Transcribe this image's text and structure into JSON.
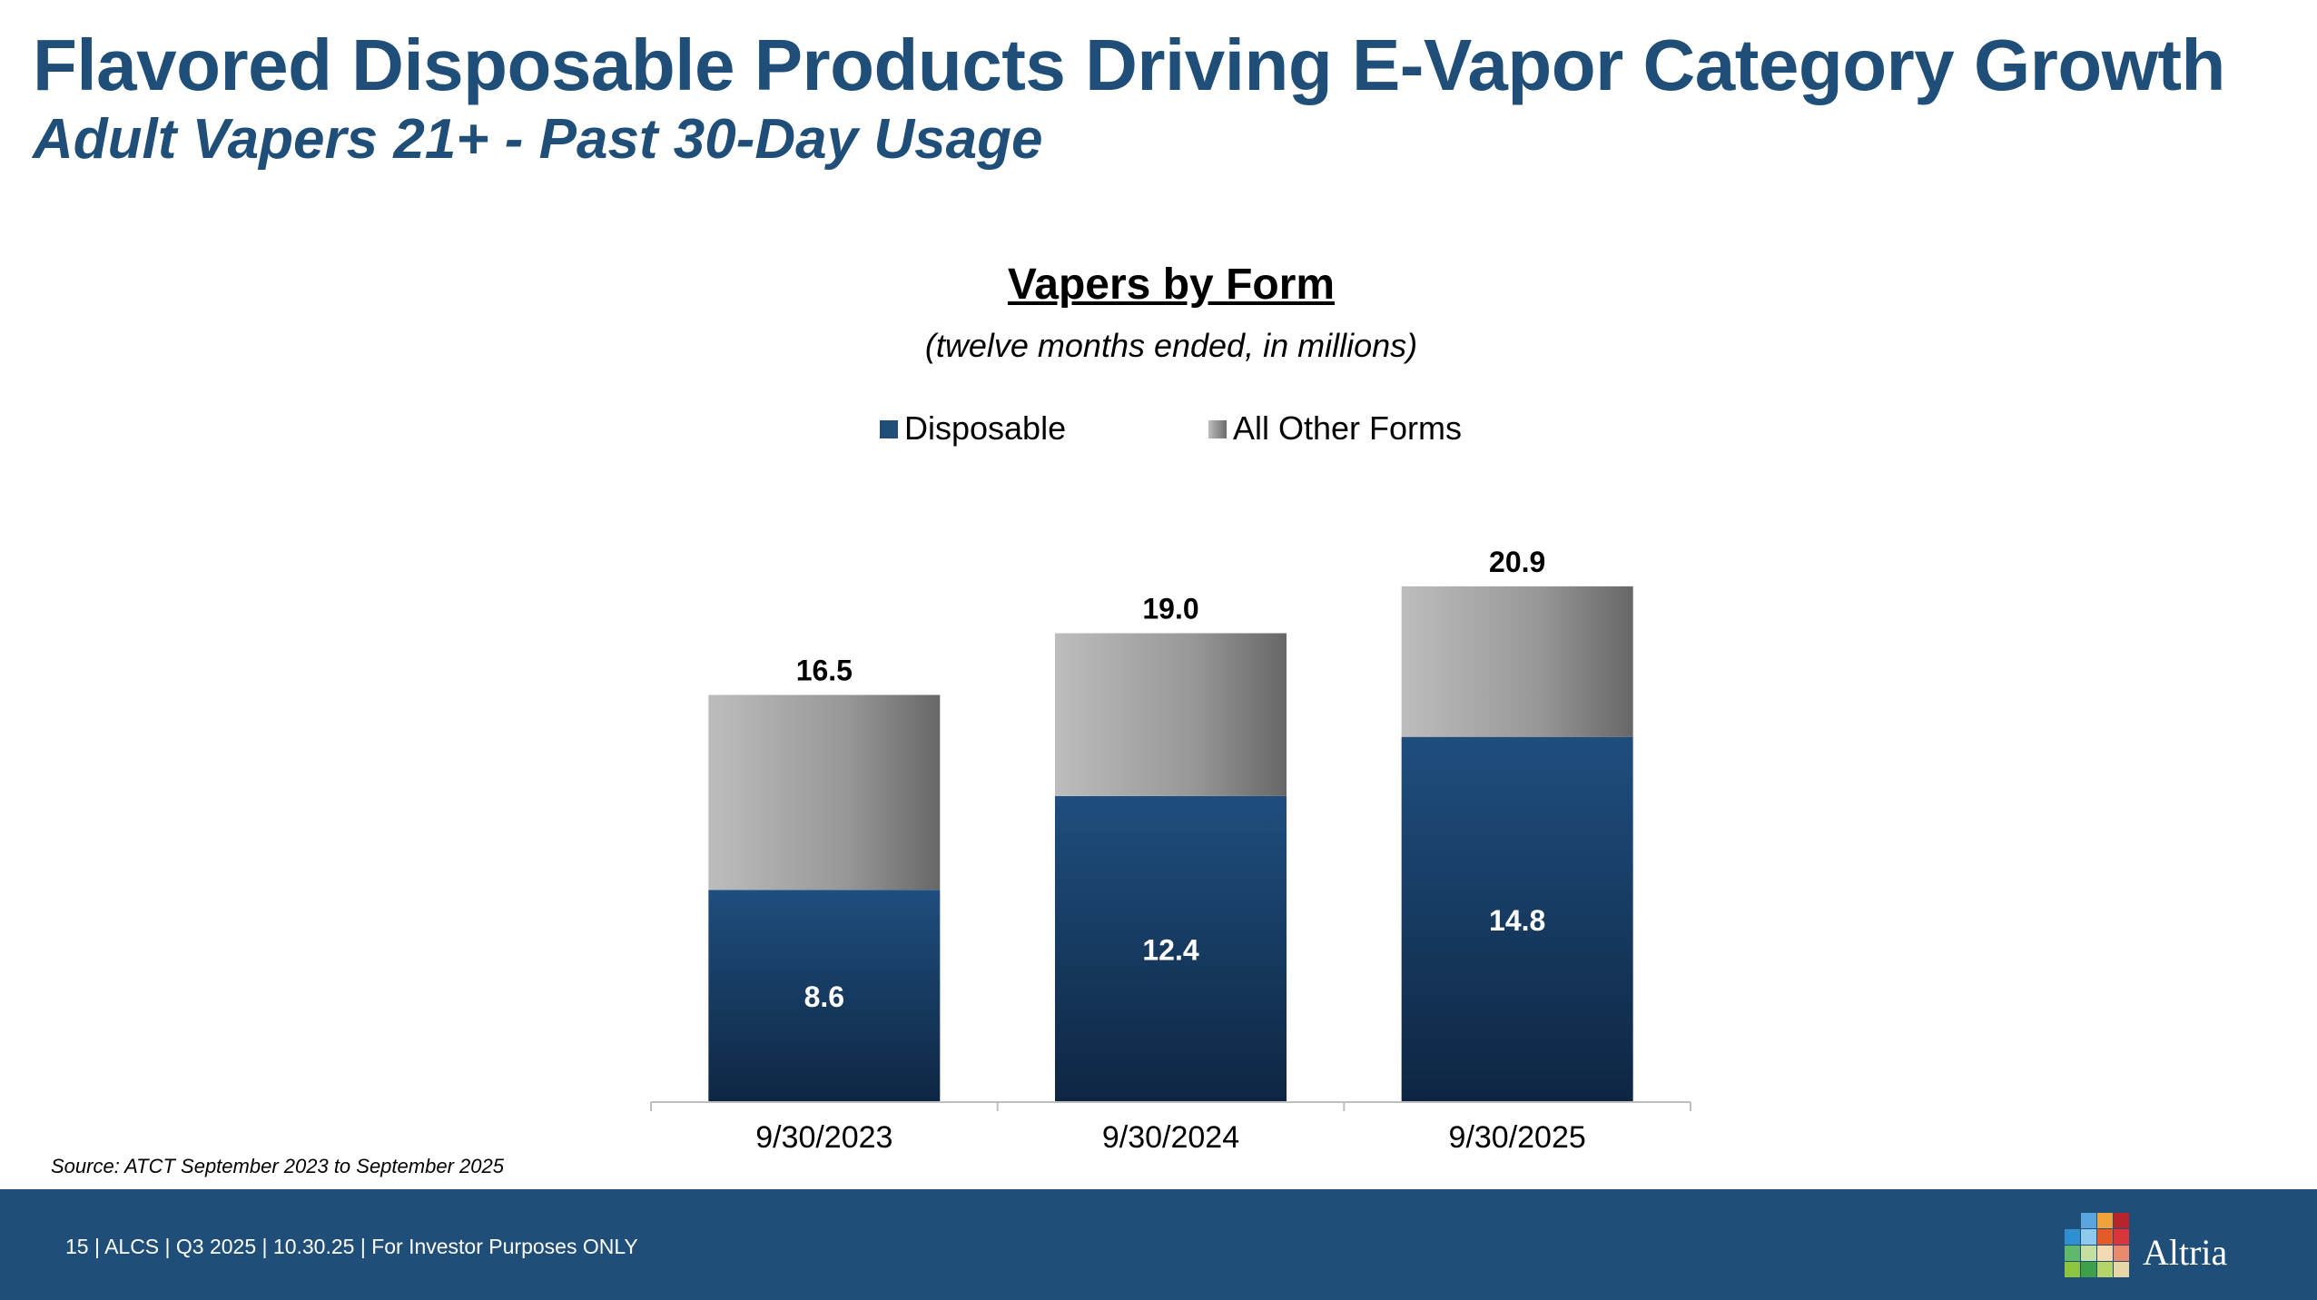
{
  "slide": {
    "title": "Flavored Disposable Products Driving E-Vapor Category Growth",
    "subtitle": "Adult Vapers 21+ - Past 30-Day Usage",
    "source": "Source: ATCT September 2023 to September 2025"
  },
  "footer": {
    "text": "15 |  ALCS | Q3 2025 | 10.30.25 | For Investor Purposes ONLY",
    "logo_text": "Altria",
    "background_color": "#1f4e79"
  },
  "chart_data": {
    "type": "bar",
    "stacked": true,
    "title": "Vapers by Form",
    "subtitle": "(twelve months ended, in millions)",
    "categories": [
      "9/30/2023",
      "9/30/2024",
      "9/30/2025"
    ],
    "series": [
      {
        "name": "Disposable",
        "values": [
          8.6,
          12.4,
          14.8
        ],
        "label": [
          "8.6",
          "12.4",
          "14.8"
        ],
        "color": "#1f4e79"
      },
      {
        "name": "All Other Forms",
        "values": [
          7.9,
          6.6,
          6.1
        ],
        "color": "#9e9e9e"
      }
    ],
    "totals": [
      "16.5",
      "19.0",
      "20.9"
    ],
    "total_values": [
      16.5,
      19.0,
      20.9
    ],
    "ylim": [
      0,
      24.5
    ],
    "grid": false,
    "legend_position": "top"
  }
}
